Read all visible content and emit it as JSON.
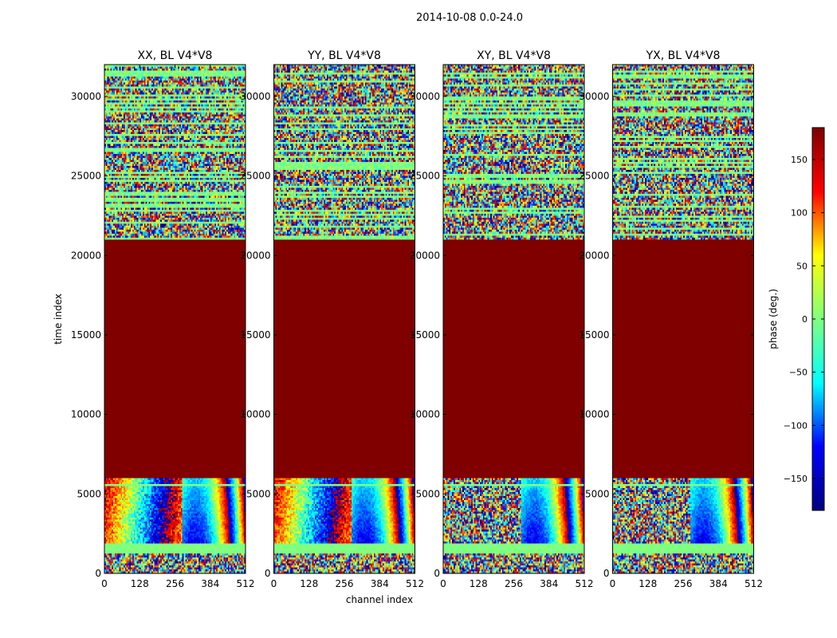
{
  "figure": {
    "suptitle": "2014-10-08 0.0-24.0",
    "xlabel": "channel index",
    "ylabel": "time index"
  },
  "colorbar": {
    "label": "phase (deg.)",
    "range": [
      -180,
      180
    ],
    "ticks": [
      -150,
      -100,
      -50,
      0,
      50,
      100,
      150
    ],
    "tick_labels": [
      "−150",
      "−100",
      "−50",
      "0",
      "50",
      "100",
      "150"
    ],
    "colormap": "jet",
    "colors": [
      "#00007f",
      "#0000ff",
      "#00ffff",
      "#7fff7f",
      "#ffff00",
      "#ff0000",
      "#7f0000"
    ]
  },
  "chart_data": {
    "type": "heatmap",
    "xlim": [
      0,
      512
    ],
    "ylim": [
      0,
      32000
    ],
    "x_ticks": [
      0,
      128,
      256,
      384,
      512
    ],
    "y_ticks": [
      0,
      5000,
      10000,
      15000,
      20000,
      25000,
      30000
    ],
    "y_tick_labels": [
      "0",
      "5000",
      "10000",
      "15000",
      "20000",
      "25000",
      "30000"
    ],
    "panels": [
      {
        "title": "XX, BL V4*V8",
        "solid_band": [
          6000,
          21000
        ],
        "solid_value": 180,
        "fringe_pattern": "slope"
      },
      {
        "title": "YY, BL V4*V8",
        "solid_band": [
          6000,
          21000
        ],
        "solid_value": 180,
        "fringe_pattern": "slope"
      },
      {
        "title": "XY, BL V4*V8",
        "solid_band": [
          6000,
          21000
        ],
        "solid_value": 180,
        "fringe_pattern": "noise"
      },
      {
        "title": "YX, BL V4*V8",
        "solid_band": [
          6000,
          21000
        ],
        "solid_value": 180,
        "fringe_pattern": "noise"
      }
    ],
    "flagged_time_bands": [
      [
        1300,
        1900
      ],
      [
        5500,
        5650
      ]
    ]
  }
}
